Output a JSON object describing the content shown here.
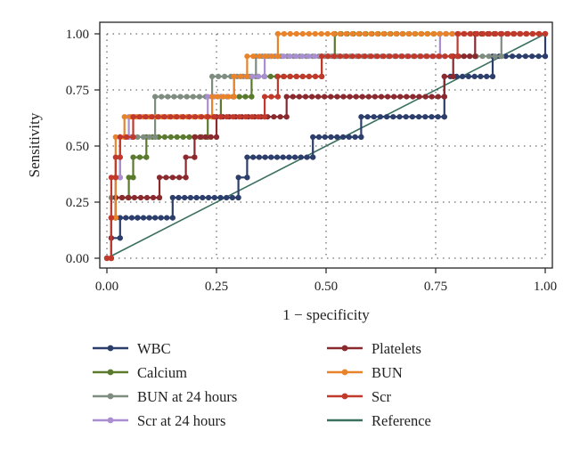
{
  "chart_data": {
    "type": "line",
    "xlabel": "1 − specificity",
    "ylabel": "Sensitivity",
    "xlim": [
      0,
      1
    ],
    "ylim": [
      0,
      1
    ],
    "xticks": [
      "0.00",
      "0.25",
      "0.50",
      "0.75",
      "1.00"
    ],
    "yticks": [
      "0.00",
      "0.25",
      "0.50",
      "0.75",
      "1.00"
    ],
    "grid": "dotted",
    "legend_position": "bottom",
    "series": [
      {
        "name": "WBC",
        "color": "#2c3e6b",
        "points": [
          [
            0,
            0
          ],
          [
            0.01,
            0
          ],
          [
            0.01,
            0.09
          ],
          [
            0.03,
            0.09
          ],
          [
            0.03,
            0.18
          ],
          [
            0.07,
            0.18
          ],
          [
            0.07,
            0.18
          ],
          [
            0.15,
            0.18
          ],
          [
            0.15,
            0.27
          ],
          [
            0.3,
            0.27
          ],
          [
            0.3,
            0.36
          ],
          [
            0.32,
            0.36
          ],
          [
            0.32,
            0.45
          ],
          [
            0.47,
            0.45
          ],
          [
            0.47,
            0.54
          ],
          [
            0.58,
            0.54
          ],
          [
            0.58,
            0.63
          ],
          [
            0.77,
            0.63
          ],
          [
            0.77,
            0.63
          ],
          [
            0.77,
            0.72
          ],
          [
            0.77,
            0.81
          ],
          [
            0.88,
            0.81
          ],
          [
            0.88,
            0.9
          ],
          [
            1.0,
            0.9
          ],
          [
            1.0,
            1.0
          ]
        ]
      },
      {
        "name": "Calcium",
        "color": "#5b7a2e",
        "points": [
          [
            0,
            0
          ],
          [
            0.01,
            0
          ],
          [
            0.01,
            0.18
          ],
          [
            0.02,
            0.18
          ],
          [
            0.02,
            0.27
          ],
          [
            0.05,
            0.27
          ],
          [
            0.05,
            0.36
          ],
          [
            0.06,
            0.36
          ],
          [
            0.06,
            0.45
          ],
          [
            0.09,
            0.45
          ],
          [
            0.09,
            0.54
          ],
          [
            0.23,
            0.54
          ],
          [
            0.23,
            0.63
          ],
          [
            0.26,
            0.63
          ],
          [
            0.26,
            0.72
          ],
          [
            0.33,
            0.72
          ],
          [
            0.33,
            0.81
          ],
          [
            0.49,
            0.81
          ],
          [
            0.49,
            0.9
          ],
          [
            0.52,
            0.9
          ],
          [
            0.52,
            1.0
          ],
          [
            1.0,
            1.0
          ]
        ]
      },
      {
        "name": "BUN at 24 hours",
        "color": "#7f8c80",
        "points": [
          [
            0,
            0
          ],
          [
            0.01,
            0
          ],
          [
            0.01,
            0.27
          ],
          [
            0.02,
            0.27
          ],
          [
            0.02,
            0.36
          ],
          [
            0.03,
            0.36
          ],
          [
            0.03,
            0.54
          ],
          [
            0.11,
            0.54
          ],
          [
            0.11,
            0.72
          ],
          [
            0.24,
            0.72
          ],
          [
            0.24,
            0.81
          ],
          [
            0.34,
            0.81
          ],
          [
            0.34,
            0.9
          ],
          [
            0.9,
            0.9
          ],
          [
            0.9,
            1.0
          ],
          [
            1.0,
            1.0
          ]
        ]
      },
      {
        "name": "Scr at 24 hours",
        "color": "#a98fd1",
        "points": [
          [
            0,
            0
          ],
          [
            0.01,
            0
          ],
          [
            0.01,
            0.18
          ],
          [
            0.02,
            0.18
          ],
          [
            0.02,
            0.36
          ],
          [
            0.03,
            0.36
          ],
          [
            0.03,
            0.54
          ],
          [
            0.05,
            0.54
          ],
          [
            0.05,
            0.63
          ],
          [
            0.23,
            0.63
          ],
          [
            0.23,
            0.72
          ],
          [
            0.29,
            0.72
          ],
          [
            0.29,
            0.81
          ],
          [
            0.36,
            0.81
          ],
          [
            0.36,
            0.9
          ],
          [
            0.76,
            0.9
          ],
          [
            0.76,
            1.0
          ],
          [
            1.0,
            1.0
          ]
        ]
      },
      {
        "name": "Platelets",
        "color": "#8a2a2e",
        "points": [
          [
            0,
            0
          ],
          [
            0.01,
            0
          ],
          [
            0.01,
            0.09
          ],
          [
            0.01,
            0.18
          ],
          [
            0.02,
            0.18
          ],
          [
            0.02,
            0.27
          ],
          [
            0.12,
            0.27
          ],
          [
            0.12,
            0.36
          ],
          [
            0.18,
            0.36
          ],
          [
            0.18,
            0.45
          ],
          [
            0.2,
            0.45
          ],
          [
            0.2,
            0.54
          ],
          [
            0.25,
            0.54
          ],
          [
            0.25,
            0.63
          ],
          [
            0.41,
            0.63
          ],
          [
            0.41,
            0.72
          ],
          [
            0.77,
            0.72
          ],
          [
            0.77,
            0.81
          ],
          [
            0.79,
            0.81
          ],
          [
            0.79,
            0.9
          ],
          [
            0.84,
            0.9
          ],
          [
            0.84,
            1.0
          ],
          [
            1.0,
            1.0
          ]
        ]
      },
      {
        "name": "BUN",
        "color": "#e8832a",
        "points": [
          [
            0,
            0
          ],
          [
            0.01,
            0
          ],
          [
            0.01,
            0.18
          ],
          [
            0.02,
            0.18
          ],
          [
            0.02,
            0.54
          ],
          [
            0.04,
            0.54
          ],
          [
            0.04,
            0.63
          ],
          [
            0.24,
            0.63
          ],
          [
            0.24,
            0.72
          ],
          [
            0.29,
            0.72
          ],
          [
            0.29,
            0.81
          ],
          [
            0.32,
            0.81
          ],
          [
            0.32,
            0.9
          ],
          [
            0.39,
            0.9
          ],
          [
            0.39,
            1.0
          ],
          [
            1.0,
            1.0
          ]
        ]
      },
      {
        "name": "Scr",
        "color": "#c0392b",
        "points": [
          [
            0,
            0
          ],
          [
            0.01,
            0
          ],
          [
            0.01,
            0.18
          ],
          [
            0.01,
            0.36
          ],
          [
            0.02,
            0.36
          ],
          [
            0.02,
            0.45
          ],
          [
            0.03,
            0.45
          ],
          [
            0.03,
            0.54
          ],
          [
            0.06,
            0.54
          ],
          [
            0.06,
            0.63
          ],
          [
            0.23,
            0.63
          ],
          [
            0.23,
            0.63
          ],
          [
            0.36,
            0.63
          ],
          [
            0.36,
            0.72
          ],
          [
            0.39,
            0.72
          ],
          [
            0.39,
            0.81
          ],
          [
            0.49,
            0.81
          ],
          [
            0.49,
            0.9
          ],
          [
            0.8,
            0.9
          ],
          [
            0.8,
            1.0
          ],
          [
            1.0,
            1.0
          ]
        ]
      }
    ],
    "reference": {
      "name": "Reference",
      "color": "#3a7060",
      "points": [
        [
          0,
          0
        ],
        [
          1,
          1
        ]
      ]
    }
  }
}
